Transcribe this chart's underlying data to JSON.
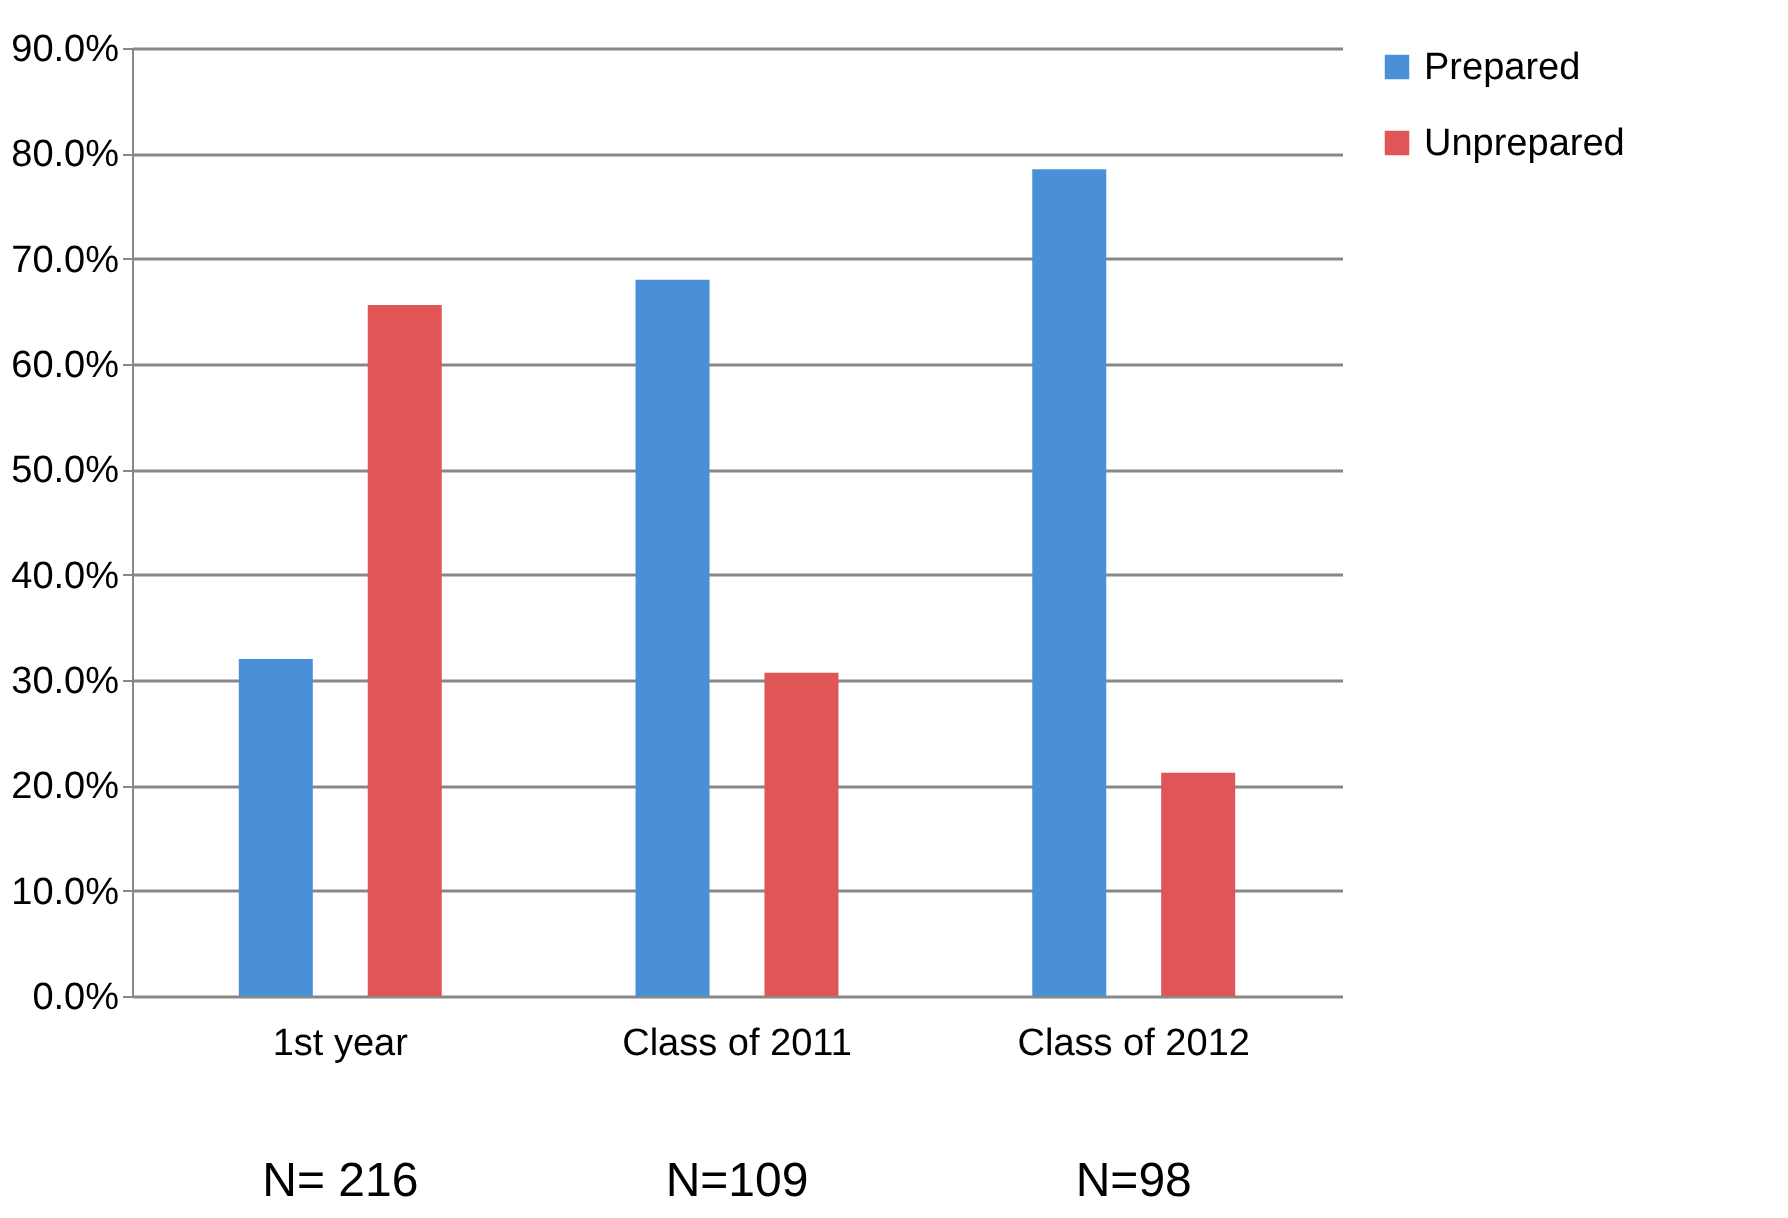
{
  "chart_data": {
    "type": "bar",
    "categories": [
      "1st year",
      "Class of 2011",
      "Class of 2012"
    ],
    "series": [
      {
        "name": "Prepared",
        "color": "#4a90d9",
        "values": [
          32.0,
          68.0,
          78.5
        ]
      },
      {
        "name": "Unprepared",
        "color": "#e05555",
        "values": [
          65.6,
          30.7,
          21.2
        ]
      }
    ],
    "ylim": [
      0,
      90
    ],
    "yticks": [
      {
        "value": 0,
        "label": "0.0%"
      },
      {
        "value": 10,
        "label": "10.0%"
      },
      {
        "value": 20,
        "label": "20.0%"
      },
      {
        "value": 30,
        "label": "30.0%"
      },
      {
        "value": 40,
        "label": "40.0%"
      },
      {
        "value": 50,
        "label": "50.0%"
      },
      {
        "value": 60,
        "label": "60.0%"
      },
      {
        "value": 70,
        "label": "70.0%"
      },
      {
        "value": 80,
        "label": "80.0%"
      },
      {
        "value": 90,
        "label": "90.0%"
      }
    ],
    "grid": "y",
    "legend": "right",
    "annotations": [
      "N= 216",
      "N=109",
      "N=98"
    ]
  }
}
